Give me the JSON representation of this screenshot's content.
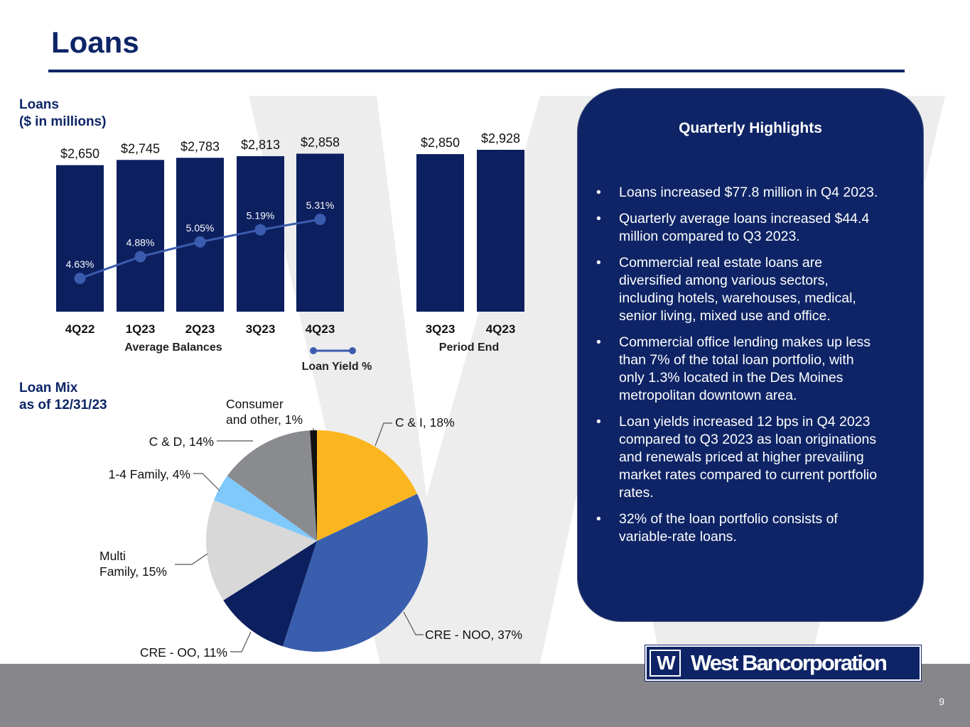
{
  "page": {
    "title": "Loans",
    "page_number": "9"
  },
  "colors": {
    "navy": "#0c2566",
    "bar": "#0c1f5f",
    "line": "#3b5cae",
    "footer": "#87878b",
    "watermark": "#ececec"
  },
  "loans_section": {
    "label_line1": "Loans",
    "label_line2": "($ in millions)"
  },
  "mix_section": {
    "label_line1": "Loan Mix",
    "label_line2": "as of 12/31/23"
  },
  "chart_data": [
    {
      "id": "average-balances",
      "type": "bar",
      "title": "Loans ($ in millions)",
      "group_label": "Average Balances",
      "categories": [
        "4Q22",
        "1Q23",
        "2Q23",
        "3Q23",
        "4Q23"
      ],
      "values": [
        2650,
        2745,
        2783,
        2813,
        2858
      ],
      "value_labels": [
        "$2,650",
        "$2,745",
        "$2,783",
        "$2,813",
        "$2,858"
      ],
      "ylim": [
        0,
        2928
      ]
    },
    {
      "id": "loan-yield",
      "type": "line",
      "title": "Loan Yield %",
      "legend_label": "Loan Yield %",
      "categories": [
        "4Q22",
        "1Q23",
        "2Q23",
        "3Q23",
        "4Q23"
      ],
      "values": [
        4.63,
        4.88,
        5.05,
        5.19,
        5.31
      ],
      "value_labels": [
        "4.63%",
        "4.88%",
        "5.05%",
        "5.19%",
        "5.31%"
      ]
    },
    {
      "id": "period-end",
      "type": "bar",
      "group_label": "Period End",
      "categories": [
        "3Q23",
        "4Q23"
      ],
      "values": [
        2850,
        2928
      ],
      "value_labels": [
        "$2,850",
        "$2,928"
      ],
      "ylim": [
        0,
        2928
      ]
    },
    {
      "id": "loan-mix",
      "type": "pie",
      "title": "Loan Mix as of 12/31/23",
      "slices": [
        {
          "name": "C & I",
          "percent": 18,
          "label": "C & I, 18%",
          "color": "#fbb61f"
        },
        {
          "name": "CRE - NOO",
          "percent": 37,
          "label": "CRE - NOO, 37%",
          "color": "#395eae"
        },
        {
          "name": "CRE - OO",
          "percent": 11,
          "label": "CRE - OO, 11%",
          "color": "#0c1f5f"
        },
        {
          "name": "Multi Family",
          "percent": 15,
          "label_line1": "Multi",
          "label_line2": "Family, 15%",
          "color": "#d8d8d8"
        },
        {
          "name": "1-4 Family",
          "percent": 4,
          "label": "1-4 Family, 4%",
          "color": "#7fc9fb"
        },
        {
          "name": "C & D",
          "percent": 14,
          "label": "C & D, 14%",
          "color": "#8a8b8f"
        },
        {
          "name": "Consumer and other",
          "percent": 1,
          "label_line1": "Consumer",
          "label_line2": "and other, 1%",
          "color": "#111111"
        }
      ]
    }
  ],
  "highlights": {
    "title": "Quarterly Highlights",
    "bullet": "•",
    "items": [
      [
        "Loans increased $77.8 million in Q4 2023."
      ],
      [
        "Quarterly average loans increased $44.4",
        "million compared to Q3 2023."
      ],
      [
        "Commercial real estate loans are",
        "diversified among various sectors,",
        "including hotels, warehouses, medical,",
        "senior living, mixed use and office."
      ],
      [
        "Commercial office lending makes up less",
        "than 7% of the total loan portfolio, with",
        "only 1.3% located in the Des Moines",
        "metropolitan downtown area."
      ],
      [
        "Loan yields increased 12 bps in Q4 2023",
        "compared to Q3 2023 as loan originations",
        "and renewals priced at higher prevailing",
        "market rates compared to current portfolio",
        "rates."
      ],
      [
        "32% of the loan portfolio consists of",
        "variable-rate loans."
      ]
    ]
  },
  "logo": {
    "mark": "W",
    "text": "West Bancorporation"
  }
}
